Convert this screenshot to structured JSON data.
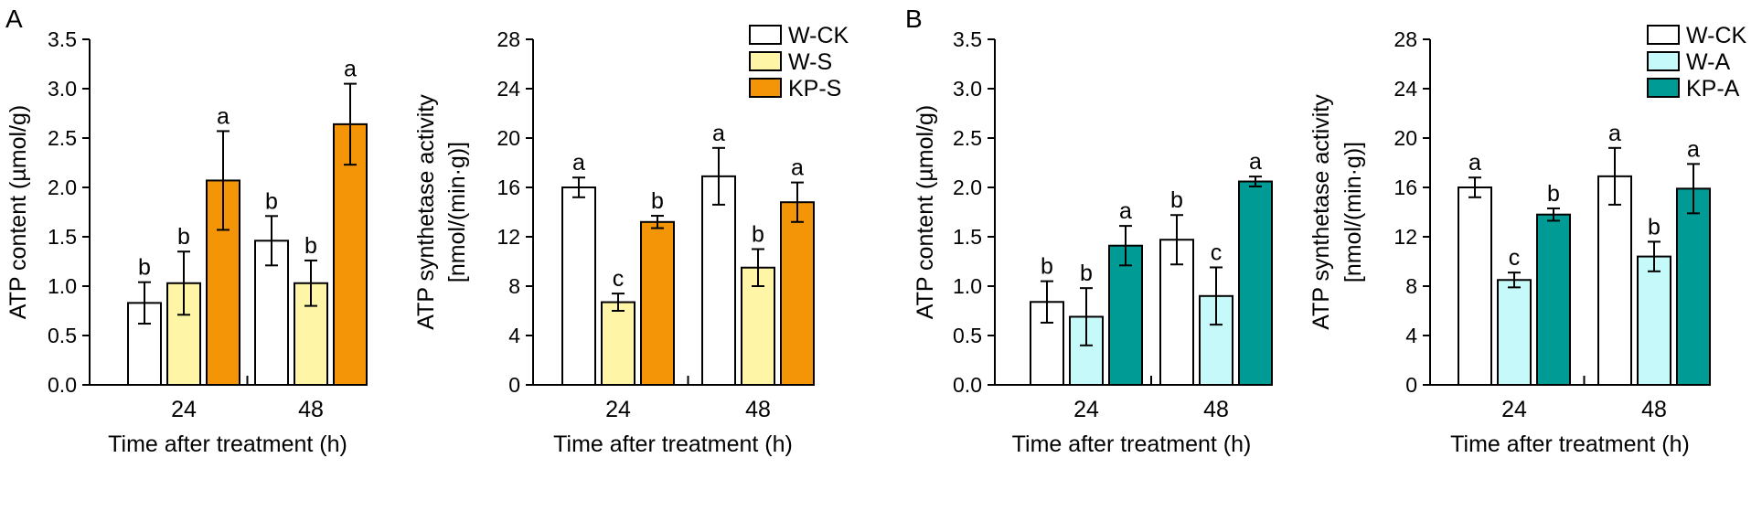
{
  "panel_labels": [
    "A",
    "B"
  ],
  "chart_data": [
    {
      "type": "bar",
      "panel": "A",
      "categories": [
        "24",
        "48"
      ],
      "xlabel": "Time after treatment (h)",
      "ylabel": "ATP content (µmol/g)",
      "ylim": [
        0,
        3.5
      ],
      "yticks": [
        "0.0",
        "0.5",
        "1.0",
        "1.5",
        "2.0",
        "2.5",
        "3.0",
        "3.5"
      ],
      "ytick_values": [
        0,
        0.5,
        1.0,
        1.5,
        2.0,
        2.5,
        3.0,
        3.5
      ],
      "grid": false,
      "series": [
        {
          "name": "W-CK",
          "color": "#ffffff",
          "values": [
            0.83,
            1.46
          ],
          "errors": [
            0.21,
            0.25
          ],
          "letters": [
            "b",
            "b"
          ]
        },
        {
          "name": "W-S",
          "color": "#fef5a6",
          "values": [
            1.03,
            1.03
          ],
          "errors": [
            0.32,
            0.23
          ],
          "letters": [
            "b",
            "b"
          ]
        },
        {
          "name": "KP-S",
          "color": "#f39507",
          "values": [
            2.07,
            2.64
          ],
          "errors": [
            0.5,
            0.41
          ],
          "letters": [
            "a",
            "a"
          ]
        }
      ]
    },
    {
      "type": "bar",
      "panel": "A",
      "categories": [
        "24",
        "48"
      ],
      "xlabel": "Time after treatment (h)",
      "ylabel": "ATP synthetase activity",
      "ylabel2": "[nmol/(min·g)]",
      "ylim": [
        0,
        28
      ],
      "yticks": [
        "0",
        "4",
        "8",
        "12",
        "16",
        "20",
        "24",
        "28"
      ],
      "ytick_values": [
        0,
        4,
        8,
        12,
        16,
        20,
        24,
        28
      ],
      "grid": false,
      "legend_position": "top-right",
      "series": [
        {
          "name": "W-CK",
          "color": "#ffffff",
          "values": [
            16.0,
            16.9
          ],
          "errors": [
            0.8,
            2.3
          ],
          "letters": [
            "a",
            "a"
          ]
        },
        {
          "name": "W-S",
          "color": "#fef5a6",
          "values": [
            6.7,
            9.5
          ],
          "errors": [
            0.7,
            1.5
          ],
          "letters": [
            "c",
            "b"
          ]
        },
        {
          "name": "KP-S",
          "color": "#f39507",
          "values": [
            13.2,
            14.8
          ],
          "errors": [
            0.5,
            1.6
          ],
          "letters": [
            "b",
            "a"
          ]
        }
      ]
    },
    {
      "type": "bar",
      "panel": "B",
      "categories": [
        "24",
        "48"
      ],
      "xlabel": "Time after treatment (h)",
      "ylabel": "ATP content (µmol/g)",
      "ylim": [
        0,
        3.5
      ],
      "yticks": [
        "0.0",
        "0.5",
        "1.0",
        "1.5",
        "2.0",
        "2.5",
        "3.0",
        "3.5"
      ],
      "ytick_values": [
        0,
        0.5,
        1.0,
        1.5,
        2.0,
        2.5,
        3.0,
        3.5
      ],
      "grid": false,
      "series": [
        {
          "name": "W-CK",
          "color": "#ffffff",
          "values": [
            0.84,
            1.47
          ],
          "errors": [
            0.21,
            0.25
          ],
          "letters": [
            "b",
            "b"
          ]
        },
        {
          "name": "W-A",
          "color": "#c6fafa",
          "values": [
            0.69,
            0.9
          ],
          "errors": [
            0.29,
            0.29
          ],
          "letters": [
            "b",
            "c"
          ]
        },
        {
          "name": "KP-A",
          "color": "#009b95",
          "values": [
            1.41,
            2.06
          ],
          "errors": [
            0.2,
            0.05
          ],
          "letters": [
            "a",
            "a"
          ]
        }
      ]
    },
    {
      "type": "bar",
      "panel": "B",
      "categories": [
        "24",
        "48"
      ],
      "xlabel": "Time after treatment (h)",
      "ylabel": "ATP synthetase activity",
      "ylabel2": "[nmol/(min·g)]",
      "ylim": [
        0,
        28
      ],
      "yticks": [
        "0",
        "4",
        "8",
        "12",
        "16",
        "20",
        "24",
        "28"
      ],
      "ytick_values": [
        0,
        4,
        8,
        12,
        16,
        20,
        24,
        28
      ],
      "grid": false,
      "legend_position": "top-right",
      "series": [
        {
          "name": "W-CK",
          "color": "#ffffff",
          "values": [
            16.0,
            16.9
          ],
          "errors": [
            0.8,
            2.3
          ],
          "letters": [
            "a",
            "a"
          ]
        },
        {
          "name": "W-A",
          "color": "#c6fafa",
          "values": [
            8.5,
            10.4
          ],
          "errors": [
            0.6,
            1.2
          ],
          "letters": [
            "c",
            "b"
          ]
        },
        {
          "name": "KP-A",
          "color": "#009b95",
          "values": [
            13.8,
            15.9
          ],
          "errors": [
            0.5,
            2.0
          ],
          "letters": [
            "b",
            "a"
          ]
        }
      ]
    }
  ]
}
